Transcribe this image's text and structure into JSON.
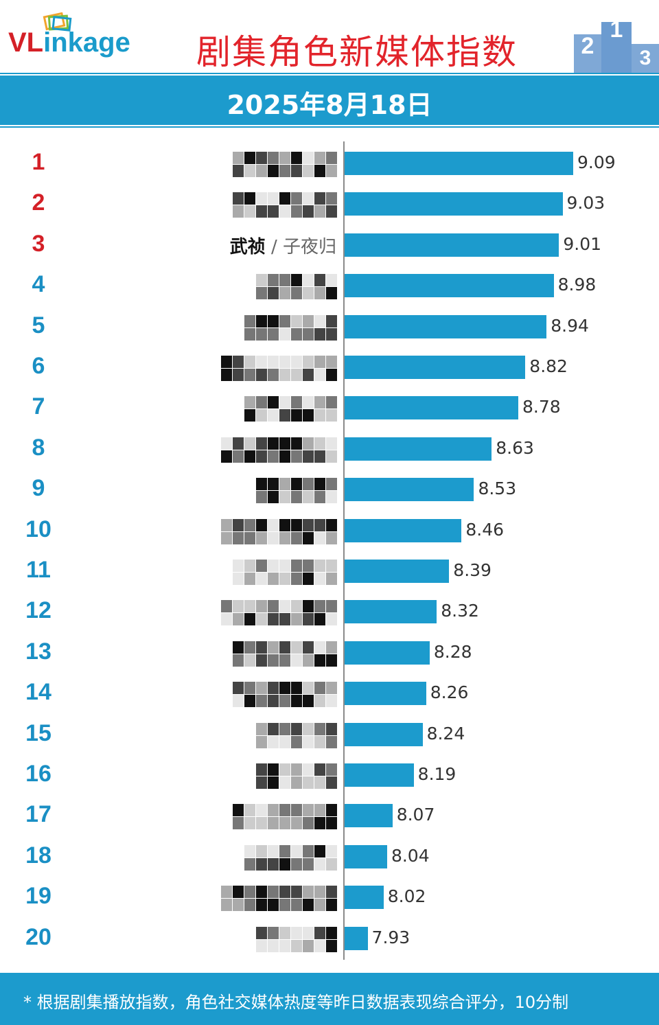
{
  "header": {
    "logo_text_red": "VL",
    "logo_text_blue": "inkage",
    "title": "剧集角色新媒体指数",
    "podium_numbers": [
      "2",
      "1",
      "3"
    ]
  },
  "date": "2025年8月18日",
  "chart_data": {
    "type": "bar",
    "orientation": "horizontal",
    "title": "剧集角色新媒体指数",
    "subtitle": "2025年8月18日",
    "categories": [
      "1",
      "2",
      "3",
      "4",
      "5",
      "6",
      "7",
      "8",
      "9",
      "10",
      "11",
      "12",
      "13",
      "14",
      "15",
      "16",
      "17",
      "18",
      "19",
      "20"
    ],
    "labels": [
      {
        "main": "",
        "sub": ""
      },
      {
        "main": "",
        "sub": ""
      },
      {
        "main": "武祯",
        "sub": " / 子夜归"
      },
      {
        "main": "",
        "sub": ""
      },
      {
        "main": "",
        "sub": ""
      },
      {
        "main": "",
        "sub": ""
      },
      {
        "main": "",
        "sub": ""
      },
      {
        "main": "",
        "sub": ""
      },
      {
        "main": "",
        "sub": ""
      },
      {
        "main": "",
        "sub": ""
      },
      {
        "main": "",
        "sub": ""
      },
      {
        "main": "",
        "sub": ""
      },
      {
        "main": "",
        "sub": ""
      },
      {
        "main": "",
        "sub": ""
      },
      {
        "main": "",
        "sub": ""
      },
      {
        "main": "",
        "sub": ""
      },
      {
        "main": "",
        "sub": ""
      },
      {
        "main": "",
        "sub": ""
      },
      {
        "main": "",
        "sub": ""
      },
      {
        "main": "",
        "sub": ""
      }
    ],
    "values": [
      9.09,
      9.03,
      9.01,
      8.98,
      8.94,
      8.82,
      8.78,
      8.63,
      8.53,
      8.46,
      8.39,
      8.32,
      8.28,
      8.26,
      8.24,
      8.19,
      8.07,
      8.04,
      8.02,
      7.93
    ],
    "value_labels": [
      "9.09",
      "9.03",
      "9.01",
      "8.98",
      "8.94",
      "8.82",
      "8.78",
      "8.63",
      "8.53",
      "8.46",
      "8.39",
      "8.32",
      "8.28",
      "8.26",
      "8.24",
      "8.19",
      "8.07",
      "8.04",
      "8.02",
      "7.93"
    ],
    "xlim": [
      7.8,
      9.09
    ],
    "top_rank_color": "#d42027",
    "rank_color": "#1a8fc4",
    "bar_color": "#1c9bcd"
  },
  "footer": {
    "note": "* 根据剧集播放指数，角色社交媒体热度等昨日数据表现综合评分，10分制"
  },
  "colors": {
    "accent_red": "#e2242b",
    "brand_blue": "#1c9bcd"
  }
}
